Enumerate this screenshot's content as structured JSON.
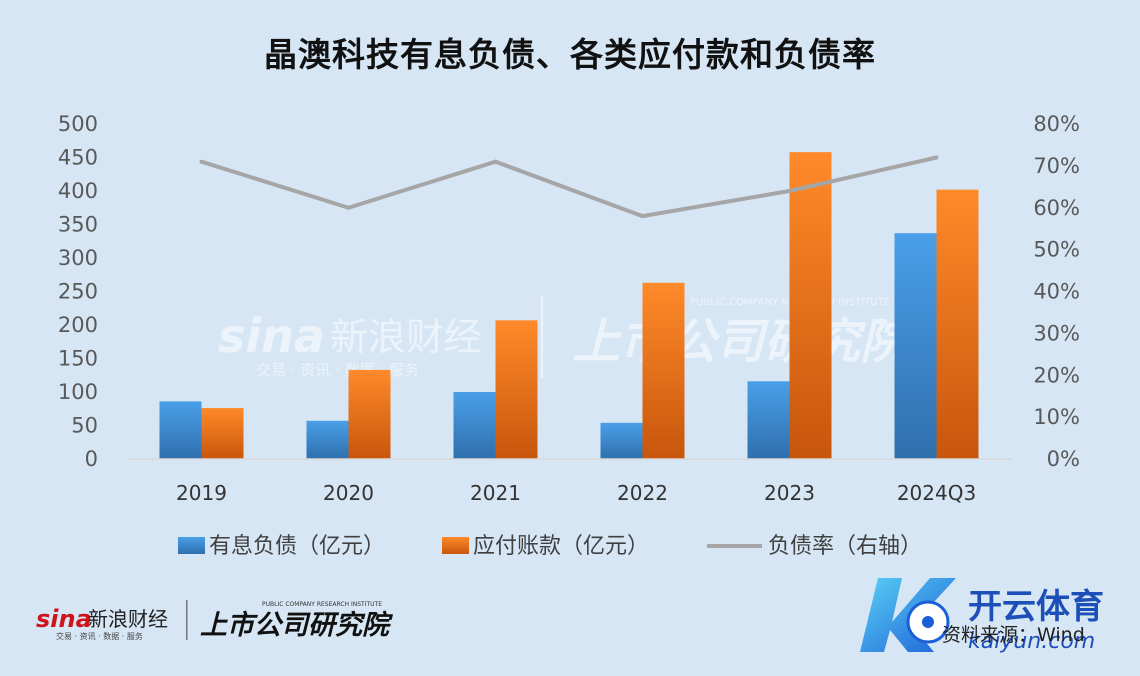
{
  "chart_data": {
    "type": "bar",
    "title": "晶澳科技有息负债、各类应付款和负债率",
    "categories": [
      "2019",
      "2020",
      "2021",
      "2022",
      "2023",
      "2024Q3"
    ],
    "series": [
      {
        "name": "有息负债（亿元）",
        "kind": "bar",
        "axis": "left",
        "color": "#3c8fdc",
        "values": [
          86,
          57,
          100,
          54,
          116,
          337
        ]
      },
      {
        "name": "应付账款（亿元）",
        "kind": "bar",
        "axis": "left",
        "color": "#f57a1c",
        "values": [
          76,
          133,
          207,
          263,
          458,
          402
        ]
      },
      {
        "name": "负债率（右轴）",
        "kind": "line",
        "axis": "right",
        "color": "#a6a6a6",
        "values": [
          0.71,
          0.6,
          0.71,
          0.58,
          0.64,
          0.72
        ]
      }
    ],
    "ylim": [
      0,
      500
    ],
    "y_ticks": [
      "0",
      "50",
      "100",
      "150",
      "200",
      "250",
      "300",
      "350",
      "400",
      "450",
      "500"
    ],
    "y2lim": [
      0,
      0.8
    ],
    "y2_ticks": [
      "0%",
      "10%",
      "20%",
      "30%",
      "40%",
      "50%",
      "60%",
      "70%",
      "80%"
    ],
    "grid": false,
    "legend_position": "bottom"
  },
  "watermark": {
    "brand": "sina",
    "brand_cn": "新浪财经",
    "brand_sub": "交易 · 资讯 · 数据 · 服务",
    "institute_cn": "上市公司研究院",
    "institute_en": "PUBLIC COMPANY RESEARCH INSTITUTE"
  },
  "corner_logo": {
    "name": "开云体育",
    "url": "kaiyun.com"
  },
  "source": "资料来源：Wind"
}
